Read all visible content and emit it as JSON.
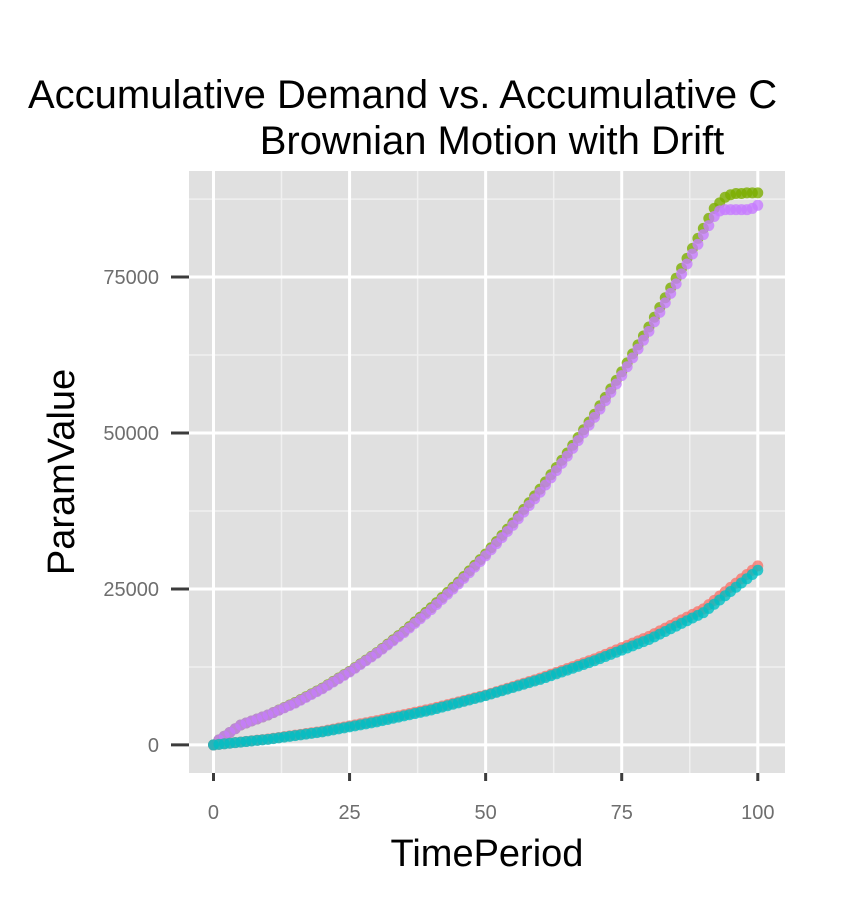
{
  "chart_data": {
    "type": "scatter",
    "title": "Accumulative Demand vs. Accumulative C",
    "subtitle": "Brownian Motion with Drift",
    "xlabel": "TimePeriod",
    "ylabel": "ParamValue",
    "xlim": [
      -4.5,
      105
    ],
    "ylim": [
      -4500,
      92000
    ],
    "x_ticks": [
      0,
      25,
      50,
      75,
      100
    ],
    "x_tick_labels": [
      "0",
      "25",
      "50",
      "75",
      "100"
    ],
    "y_ticks": [
      0,
      25000,
      50000,
      75000
    ],
    "y_tick_labels": [
      "0",
      "25000",
      "50000",
      "75000"
    ],
    "grid": true,
    "legend": "none",
    "background": "#e0e0e0",
    "series": [
      {
        "color": "#7cae00",
        "x": [
          0,
          1,
          2,
          3,
          4,
          5,
          10,
          15,
          20,
          25,
          30,
          35,
          40,
          45,
          50,
          55,
          60,
          65,
          70,
          75,
          80,
          85,
          88,
          90,
          92,
          94,
          95,
          96,
          97,
          98,
          99,
          100
        ],
        "y": [
          0,
          800,
          1400,
          2000,
          2600,
          3200,
          4800,
          6800,
          9100,
          11800,
          14800,
          18200,
          22000,
          26100,
          30600,
          35600,
          41000,
          46800,
          53000,
          59800,
          67000,
          74800,
          79600,
          82800,
          86000,
          87800,
          88200,
          88400,
          88400,
          88500,
          88500,
          88500
        ]
      },
      {
        "color": "#c77cff",
        "x": [
          0,
          1,
          2,
          3,
          4,
          5,
          10,
          15,
          20,
          25,
          30,
          35,
          40,
          45,
          50,
          55,
          60,
          65,
          70,
          75,
          80,
          85,
          88,
          90,
          92,
          93,
          94,
          95,
          96,
          97,
          98,
          99,
          100
        ],
        "y": [
          0,
          800,
          1400,
          2000,
          2600,
          3200,
          4800,
          6700,
          9000,
          11700,
          14700,
          18000,
          21700,
          25800,
          30300,
          35200,
          40500,
          46300,
          52500,
          59200,
          66300,
          73900,
          78700,
          81800,
          84700,
          85600,
          85800,
          85800,
          85800,
          85800,
          85800,
          86000,
          86500
        ]
      },
      {
        "color": "#f8766d",
        "x": [
          0,
          10,
          20,
          30,
          40,
          50,
          60,
          70,
          80,
          90,
          100
        ],
        "y": [
          0,
          950,
          2200,
          3900,
          5800,
          8000,
          10700,
          13800,
          17400,
          21800,
          28700
        ]
      },
      {
        "color": "#00bfc4",
        "x": [
          0,
          10,
          20,
          30,
          40,
          50,
          60,
          70,
          80,
          90,
          100
        ],
        "y": [
          0,
          900,
          2100,
          3700,
          5600,
          7900,
          10500,
          13500,
          16900,
          21200,
          28000
        ]
      }
    ]
  }
}
